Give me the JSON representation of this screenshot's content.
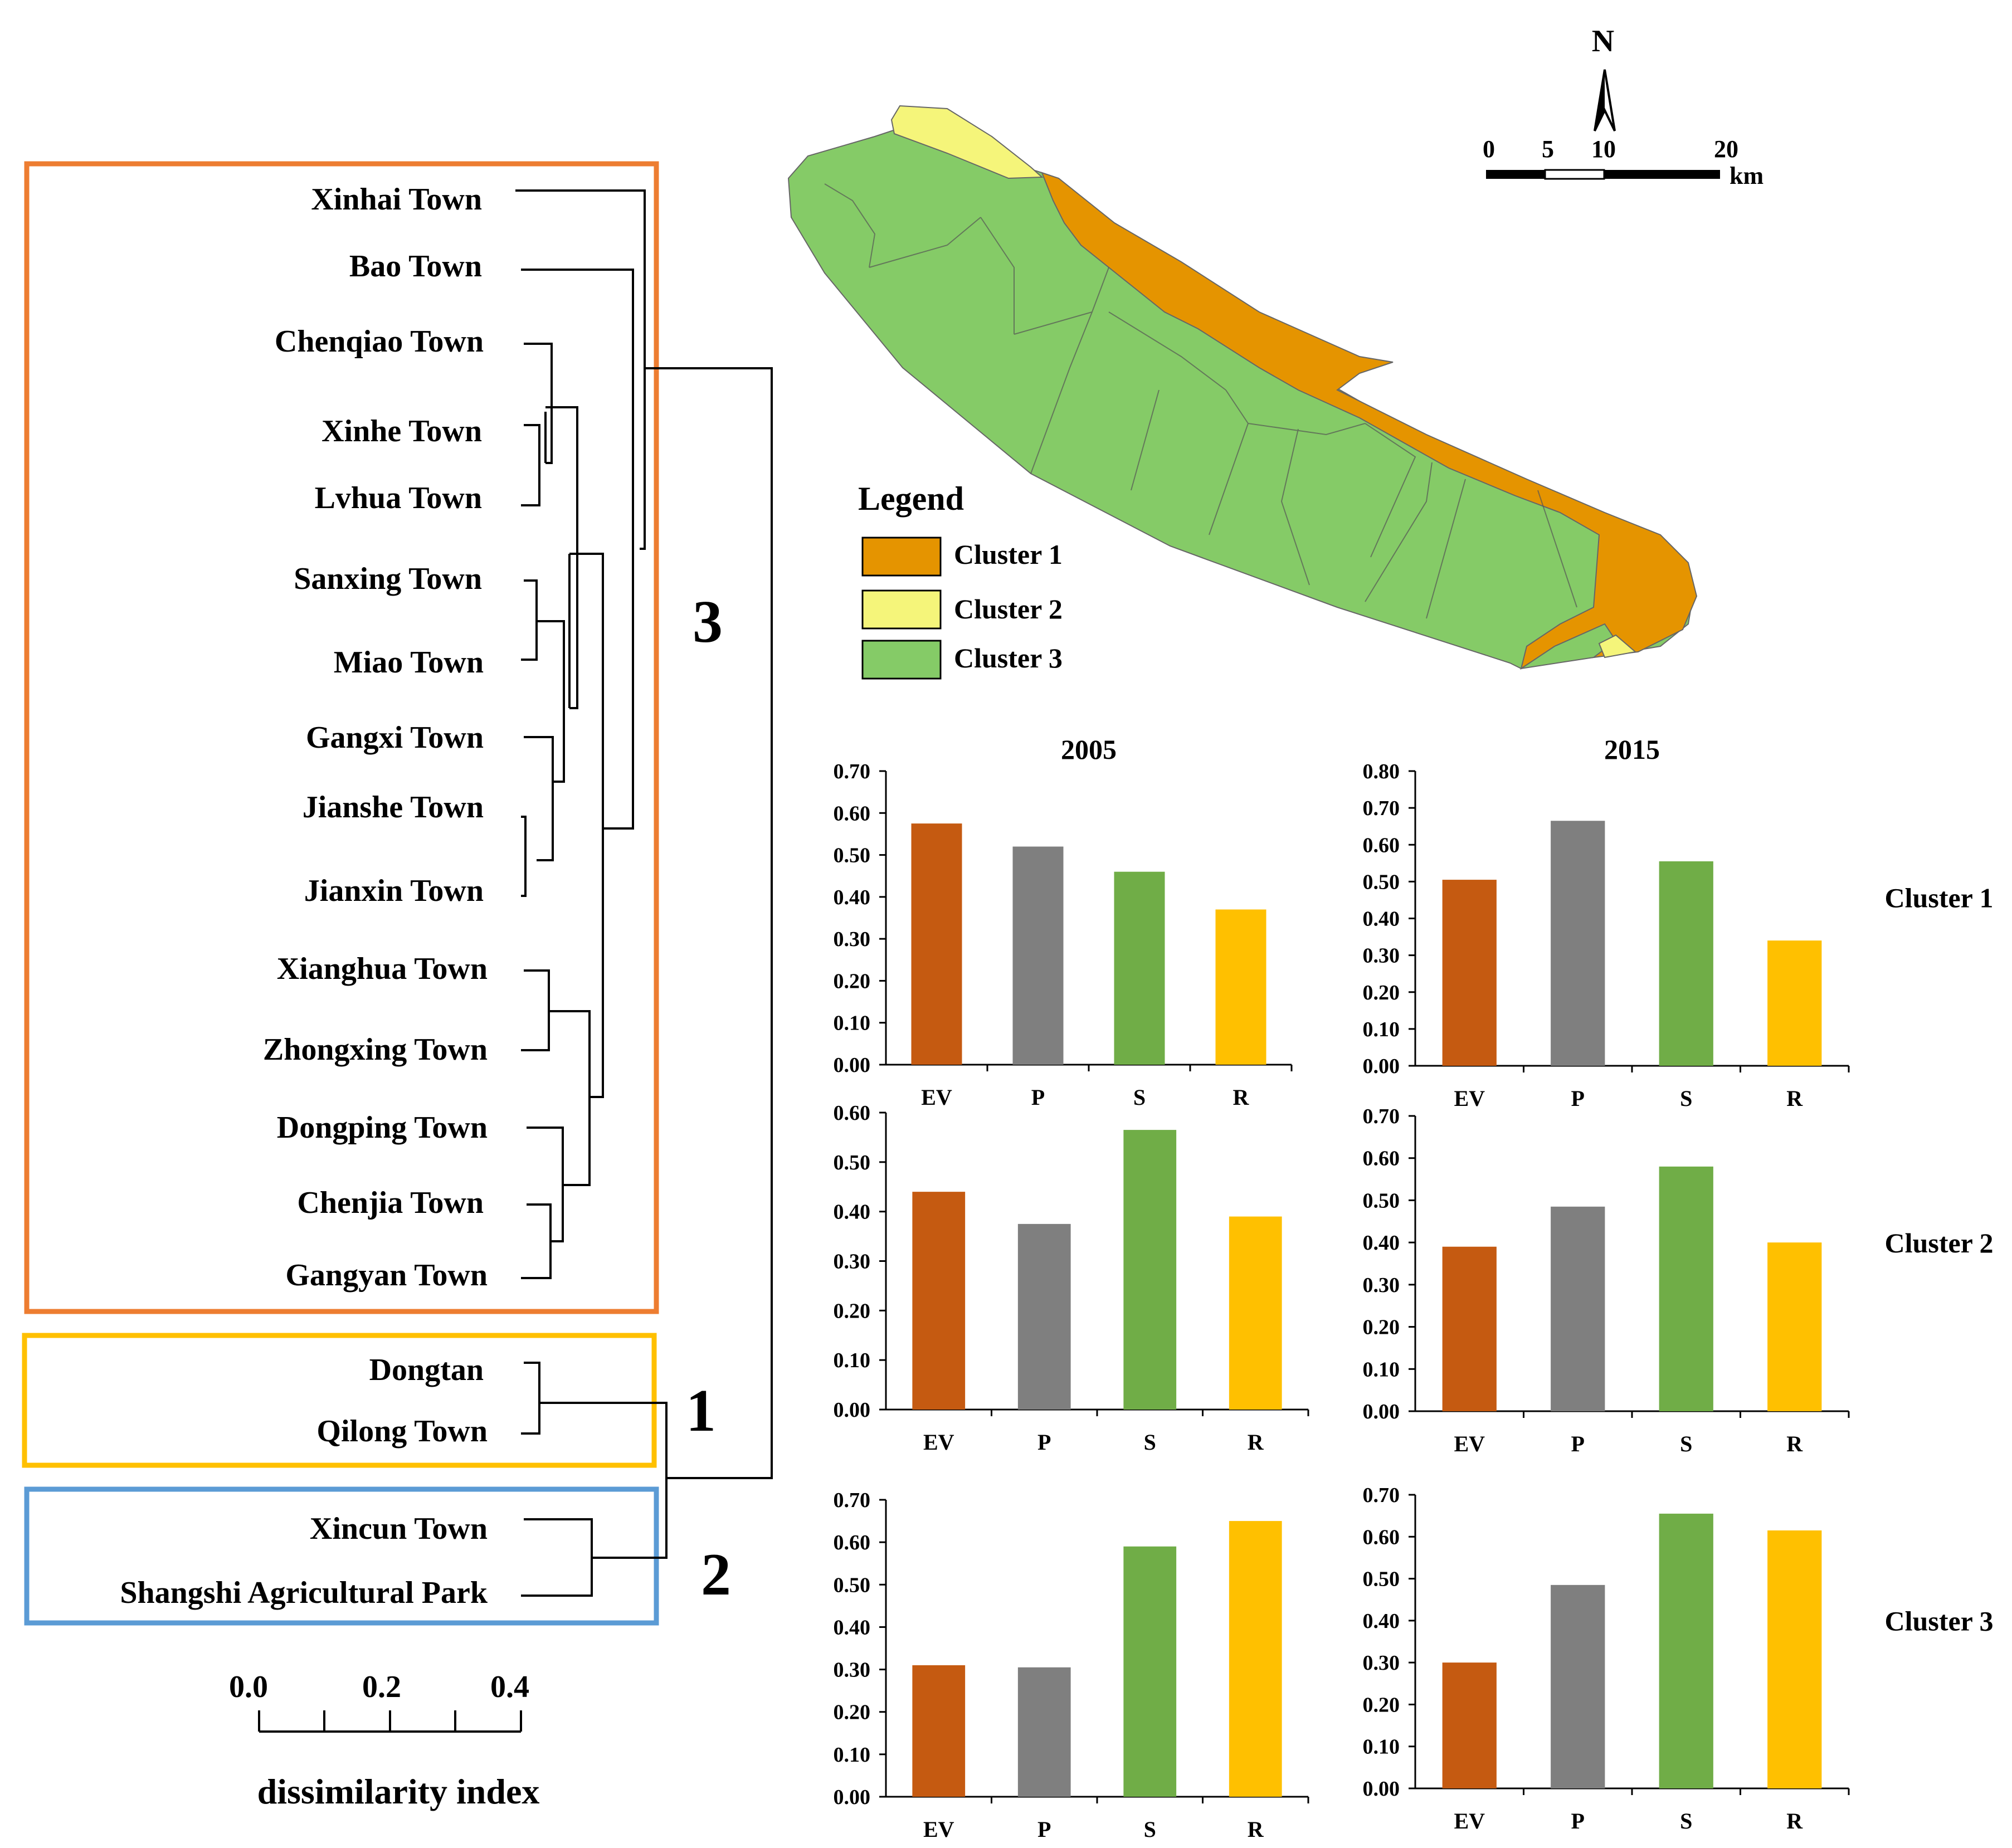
{
  "dendrogram": {
    "towns": [
      "Xinhai Town",
      "Bao Town",
      "Chenqiao Town",
      "Xinhe Town",
      "Lvhua Town",
      "Sanxing Town",
      "Miao Town",
      "Gangxi Town",
      "Jianshe Town",
      "Jianxin Town",
      "Xianghua Town",
      "Zhongxing Town",
      "Dongping Town",
      "Chenjia Town",
      "Gangyan Town",
      "Dongtan",
      "Qilong Town",
      "Xincun Town",
      "Shangshi Agricultural Park"
    ],
    "group_labels": [
      "3",
      "1",
      "2"
    ],
    "group_colors": [
      "#ED7D31",
      "#FFC000",
      "#5B9BD5"
    ],
    "scale": {
      "ticks": [
        "0.0",
        "0.2",
        "0.4"
      ],
      "label": "dissimilarity index"
    }
  },
  "map": {
    "north_label": "N",
    "scale_ticks": [
      "0",
      "5",
      "10",
      "20"
    ],
    "scale_unit": "km",
    "legend_title": "Legend",
    "legend": [
      {
        "label": "Cluster 1",
        "color": "#E59400"
      },
      {
        "label": "Cluster 2",
        "color": "#F5F57A"
      },
      {
        "label": "Cluster 3",
        "color": "#85CB67"
      }
    ]
  },
  "chart_data": [
    {
      "type": "bar",
      "title": "2005",
      "row_label": "",
      "categories": [
        "EV",
        "P",
        "S",
        "R"
      ],
      "values": [
        0.575,
        0.52,
        0.46,
        0.37
      ],
      "ylim": [
        0,
        0.7
      ],
      "yticks": [
        "0.00",
        "0.10",
        "0.20",
        "0.30",
        "0.40",
        "0.50",
        "0.60",
        "0.70"
      ],
      "colors": [
        "#C55A11",
        "#7F7F7F",
        "#70AD47",
        "#FFC000"
      ]
    },
    {
      "type": "bar",
      "title": "2015",
      "row_label": "Cluster 1",
      "categories": [
        "EV",
        "P",
        "S",
        "R"
      ],
      "values": [
        0.505,
        0.665,
        0.555,
        0.34
      ],
      "ylim": [
        0,
        0.8
      ],
      "yticks": [
        "0.00",
        "0.10",
        "0.20",
        "0.30",
        "0.40",
        "0.50",
        "0.60",
        "0.70",
        "0.80"
      ],
      "colors": [
        "#C55A11",
        "#7F7F7F",
        "#70AD47",
        "#FFC000"
      ]
    },
    {
      "type": "bar",
      "title": "",
      "row_label": "",
      "categories": [
        "EV",
        "P",
        "S",
        "R"
      ],
      "values": [
        0.44,
        0.375,
        0.565,
        0.39
      ],
      "ylim": [
        0,
        0.6
      ],
      "yticks": [
        "0.00",
        "0.10",
        "0.20",
        "0.30",
        "0.40",
        "0.50",
        "0.60"
      ],
      "colors": [
        "#C55A11",
        "#7F7F7F",
        "#70AD47",
        "#FFC000"
      ]
    },
    {
      "type": "bar",
      "title": "",
      "row_label": "Cluster 2",
      "categories": [
        "EV",
        "P",
        "S",
        "R"
      ],
      "values": [
        0.39,
        0.485,
        0.58,
        0.4
      ],
      "ylim": [
        0,
        0.7
      ],
      "yticks": [
        "0.00",
        "0.10",
        "0.20",
        "0.30",
        "0.40",
        "0.50",
        "0.60",
        "0.70"
      ],
      "colors": [
        "#C55A11",
        "#7F7F7F",
        "#70AD47",
        "#FFC000"
      ]
    },
    {
      "type": "bar",
      "title": "",
      "row_label": "",
      "categories": [
        "EV",
        "P",
        "S",
        "R"
      ],
      "values": [
        0.31,
        0.305,
        0.59,
        0.65
      ],
      "ylim": [
        0,
        0.7
      ],
      "yticks": [
        "0.00",
        "0.10",
        "0.20",
        "0.30",
        "0.40",
        "0.50",
        "0.60",
        "0.70"
      ],
      "colors": [
        "#C55A11",
        "#7F7F7F",
        "#70AD47",
        "#FFC000"
      ]
    },
    {
      "type": "bar",
      "title": "",
      "row_label": "Cluster 3",
      "categories": [
        "EV",
        "P",
        "S",
        "R"
      ],
      "values": [
        0.3,
        0.485,
        0.655,
        0.615
      ],
      "ylim": [
        0,
        0.7
      ],
      "yticks": [
        "0.00",
        "0.10",
        "0.20",
        "0.30",
        "0.40",
        "0.50",
        "0.60",
        "0.70"
      ],
      "colors": [
        "#C55A11",
        "#7F7F7F",
        "#70AD47",
        "#FFC000"
      ]
    }
  ]
}
